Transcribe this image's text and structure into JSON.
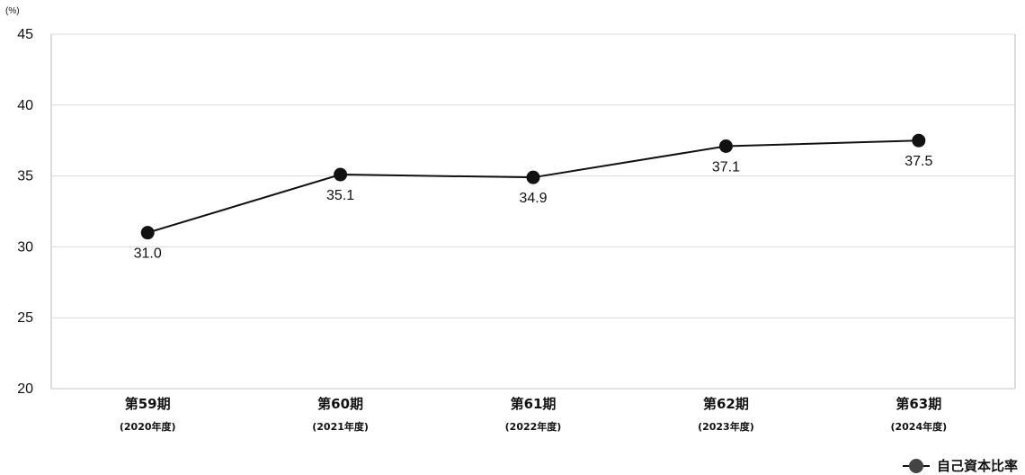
{
  "chart_data": {
    "type": "line",
    "title": "",
    "xlabel": "",
    "ylabel": "(%)",
    "ylim": [
      20,
      45
    ],
    "yticks": [
      20,
      25,
      30,
      35,
      40,
      45
    ],
    "grid": true,
    "legend_position": "bottom-right",
    "categories": [
      "第59期",
      "第60期",
      "第61期",
      "第62期",
      "第63期"
    ],
    "category_sublabels": [
      "(2020年度)",
      "(2021年度)",
      "(2022年度)",
      "(2023年度)",
      "(2024年度)"
    ],
    "series": [
      {
        "name": "自己資本比率",
        "values": [
          31.0,
          35.1,
          34.9,
          37.1,
          37.5
        ],
        "data_labels": [
          "31.0",
          "35.1",
          "34.9",
          "37.1",
          "37.5"
        ],
        "line_color": "#111111",
        "marker_color": "#111111"
      }
    ]
  },
  "legend": {
    "label": "自己資本比率",
    "marker_color": "#444444"
  },
  "colors": {
    "grid": "#d9d9d9",
    "axis": "#cfcfcf",
    "text": "#111111"
  }
}
